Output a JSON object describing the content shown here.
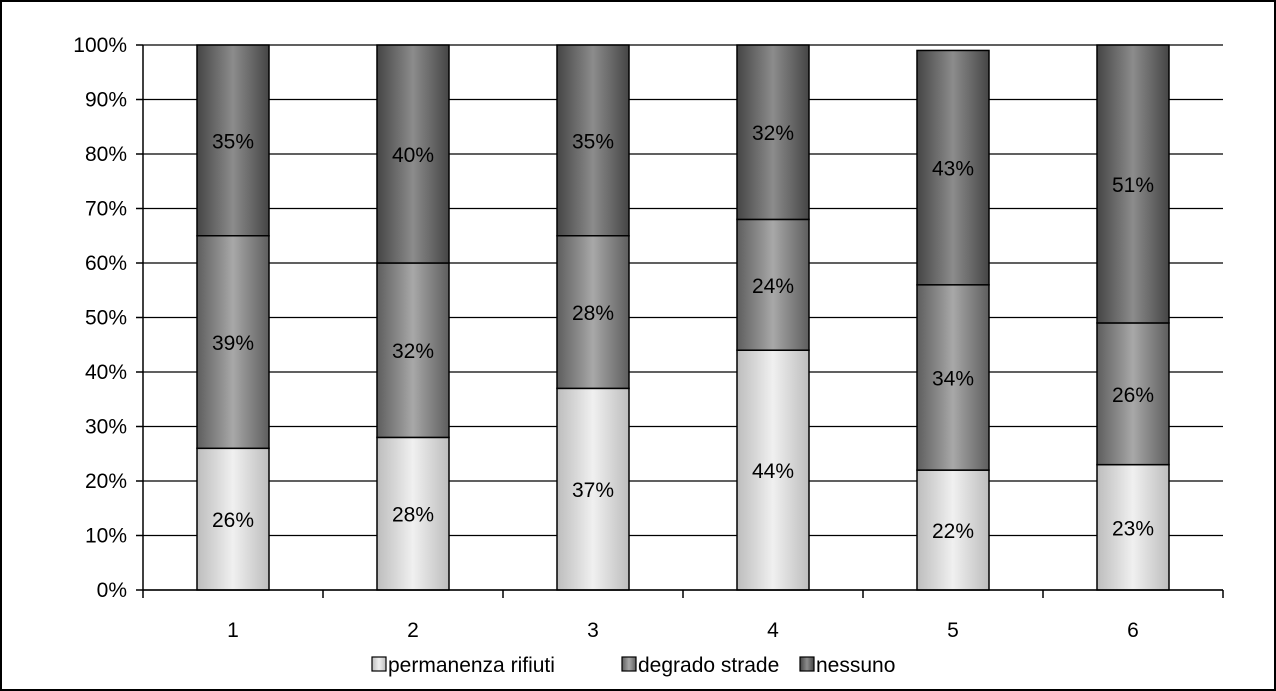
{
  "chart_data": {
    "type": "bar",
    "stacked": true,
    "percent_stacked": true,
    "categories": [
      "1",
      "2",
      "3",
      "4",
      "5",
      "6"
    ],
    "series": [
      {
        "name": "permanenza rifiuti",
        "values": [
          26,
          28,
          37,
          44,
          22,
          23
        ],
        "labels": [
          "26%",
          "28%",
          "37%",
          "44%",
          "22%",
          "23%"
        ],
        "color": "#bdbdbd",
        "highlight": "#f0f0f0"
      },
      {
        "name": "degrado strade",
        "values": [
          39,
          32,
          28,
          24,
          34,
          26
        ],
        "labels": [
          "39%",
          "32%",
          "28%",
          "24%",
          "34%",
          "26%"
        ],
        "color": "#5e5e5e",
        "highlight": "#a8a8a8"
      },
      {
        "name": "nessuno",
        "values": [
          35,
          40,
          35,
          32,
          43,
          51
        ],
        "labels": [
          "35%",
          "40%",
          "35%",
          "32%",
          "43%",
          "51%"
        ],
        "color": "#454545",
        "highlight": "#8c8c8c"
      }
    ],
    "y_ticks": [
      "0%",
      "10%",
      "20%",
      "30%",
      "40%",
      "50%",
      "60%",
      "70%",
      "80%",
      "90%",
      "100%"
    ],
    "ylim": [
      0,
      100
    ],
    "grid": true,
    "legend_position": "bottom",
    "title": "",
    "xlabel": "",
    "ylabel": ""
  }
}
